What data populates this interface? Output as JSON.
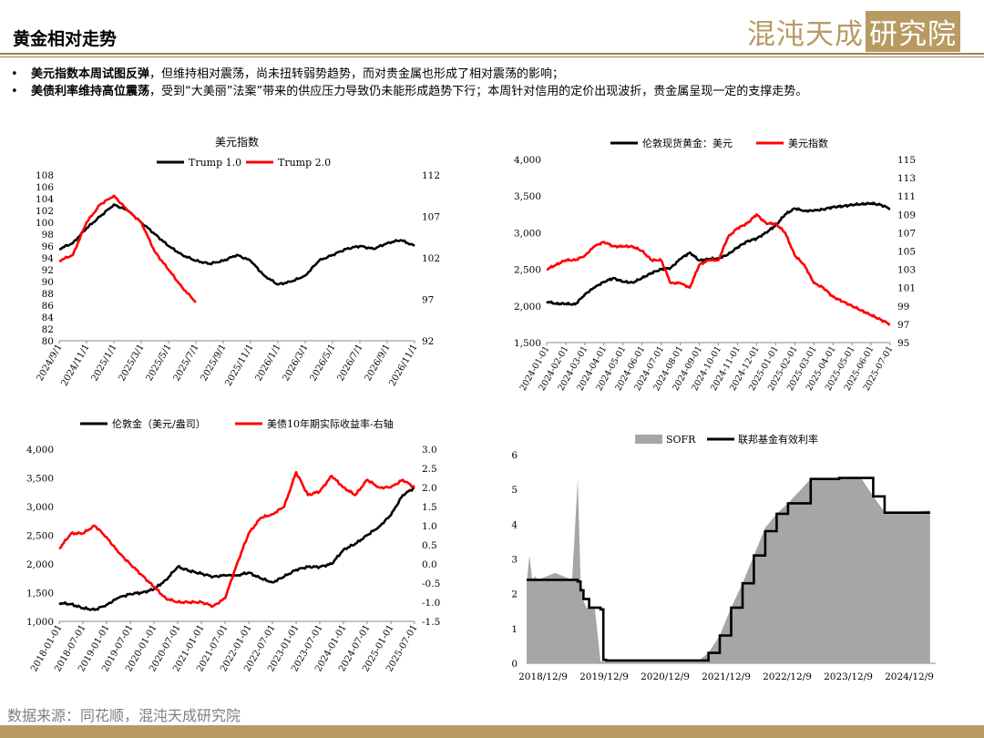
{
  "header": {
    "title": "黄金相对走势",
    "brand_part1": "混沌天成",
    "brand_part2": "研究院",
    "brand_color": "#b89a63"
  },
  "bullets": [
    {
      "bold": "美元指数本周试图反弹",
      "rest": "，但维持相对震荡，尚未扭转弱势趋势，而对贵金属也形成了相对震荡的影响；"
    },
    {
      "bold": "美债利率维持高位震荡",
      "rest": "，受到“大美丽”法案”带来的供应压力导致仍未能形成趋势下行；本周针对信用的定价出现波折，贵金属呈现一定的支撑走势。"
    }
  ],
  "footer": {
    "source": "数据来源：同花顺，混沌天成研究院"
  },
  "chart_data": [
    {
      "id": "usd_index_trump",
      "type": "line",
      "title": "美元指数",
      "x_ticks": [
        "2024/9/1",
        "2024/11/1",
        "2025/1/1",
        "2025/3/1",
        "2025/5/1",
        "2025/7/1",
        "2025/9/1",
        "2025/11/1",
        "2026/1/1",
        "2026/3/1",
        "2026/5/1",
        "2026/7/1",
        "2026/9/1",
        "2026/11/1"
      ],
      "y_left": {
        "min": 80,
        "max": 108,
        "step": 2,
        "ticks": [
          "108",
          "106",
          "104",
          "102",
          "100",
          "98",
          "96",
          "94",
          "92",
          "90",
          "88",
          "86",
          "84",
          "82",
          "80"
        ]
      },
      "y_right": {
        "min": 92,
        "max": 112,
        "ticks": [
          "112",
          "107",
          "102",
          "97",
          "92"
        ]
      },
      "series": [
        {
          "name": "Trump 1.0",
          "color": "#000000",
          "axis": "left",
          "x": [
            0,
            0.5,
            1,
            1.5,
            2,
            2.5,
            3,
            3.5,
            4,
            4.5,
            5,
            5.5,
            6,
            6.5,
            7,
            7.5,
            8,
            8.5,
            9,
            9.5,
            10,
            10.5,
            11,
            11.5,
            12,
            12.5,
            13
          ],
          "values": [
            95.5,
            96.5,
            99,
            101,
            103,
            102,
            100,
            98,
            96,
            94.5,
            93.5,
            93,
            93.5,
            94.5,
            93.5,
            91,
            89.5,
            90,
            91,
            93.5,
            94.5,
            95.5,
            96,
            95.5,
            96.5,
            97,
            96
          ]
        },
        {
          "name": "Trump 2.0",
          "color": "#ff0000",
          "axis": "left",
          "x": [
            0,
            0.5,
            1,
            1.5,
            2,
            2.5,
            3,
            3.5,
            4,
            4.5,
            5
          ],
          "values": [
            93.5,
            94.5,
            100,
            103,
            104.5,
            102,
            100,
            95,
            92,
            89,
            86.5
          ]
        }
      ]
    },
    {
      "id": "gold_vs_usd",
      "type": "line",
      "title": "",
      "x_ticks": [
        "2024-01-01",
        "2024-02-01",
        "2024-03-01",
        "2024-04-01",
        "2024-05-01",
        "2024-06-01",
        "2024-07-01",
        "2024-08-01",
        "2024-09-01",
        "2024-10-01",
        "2024-11-01",
        "2024-12-01",
        "2025-01-01",
        "2025-02-01",
        "2025-03-01",
        "2025-04-01",
        "2025-05-01",
        "2025-06-01",
        "2025-07-01"
      ],
      "y_left": {
        "min": 1500,
        "max": 4000,
        "ticks": [
          "4,000",
          "3,500",
          "3,000",
          "2,500",
          "2,000",
          "1,500"
        ]
      },
      "y_right": {
        "min": 95,
        "max": 115,
        "ticks": [
          "115",
          "113",
          "111",
          "109",
          "107",
          "105",
          "103",
          "101",
          "99",
          "97",
          "95"
        ]
      },
      "series": [
        {
          "name": "伦敦现货黄金：美元",
          "color": "#000000",
          "axis": "left",
          "x": [
            0,
            0.5,
            1,
            1.5,
            2,
            2.5,
            3,
            3.5,
            4,
            4.5,
            5,
            5.5,
            6,
            6.5,
            7,
            7.5,
            8,
            8.5,
            9,
            9.5,
            10,
            10.5,
            11,
            11.5,
            12,
            12.5,
            13,
            13.5,
            14,
            14.5,
            15,
            15.5,
            16,
            16.5,
            17,
            17.5,
            18
          ],
          "values": [
            2060,
            2030,
            2030,
            2020,
            2160,
            2250,
            2330,
            2380,
            2330,
            2320,
            2380,
            2450,
            2500,
            2520,
            2640,
            2730,
            2620,
            2640,
            2650,
            2700,
            2800,
            2880,
            2920,
            3000,
            3100,
            3250,
            3330,
            3300,
            3300,
            3320,
            3350,
            3360,
            3380,
            3390,
            3400,
            3380,
            3330
          ]
        },
        {
          "name": "美元指数",
          "color": "#ff0000",
          "axis": "right",
          "x": [
            0,
            0.5,
            1,
            1.5,
            2,
            2.5,
            3,
            3.5,
            4,
            4.5,
            5,
            5.5,
            6,
            6.5,
            7,
            7.5,
            8,
            8.5,
            9,
            9.5,
            10,
            10.5,
            11,
            11.5,
            12,
            12.5,
            13,
            13.5,
            14,
            14.5,
            15,
            15.5,
            16,
            16.5,
            17,
            17.5,
            18
          ],
          "values": [
            103,
            103.5,
            104,
            104,
            104.5,
            105.5,
            106,
            105.5,
            105.5,
            105.5,
            105,
            104,
            104,
            101.5,
            101.5,
            101,
            103.5,
            104,
            104,
            106.5,
            107.5,
            108,
            109,
            108,
            108,
            107,
            104.5,
            103.5,
            101.5,
            101,
            100,
            99.5,
            99,
            98.5,
            98,
            97.5,
            97
          ]
        }
      ]
    },
    {
      "id": "gold_vs_tips",
      "type": "line",
      "title": "",
      "x_ticks": [
        "2018-01-01",
        "2018-07-01",
        "2019-01-01",
        "2019-07-01",
        "2020-01-01",
        "2020-07-01",
        "2021-01-01",
        "2021-07-01",
        "2022-01-01",
        "2022-07-01",
        "2023-01-01",
        "2023-07-01",
        "2024-01-01",
        "2024-07-01",
        "2025-01-01",
        "2025-07-01"
      ],
      "y_left": {
        "min": 1000,
        "max": 4000,
        "ticks": [
          "4,000",
          "3,500",
          "3,000",
          "2,500",
          "2,000",
          "1,500",
          "1,000"
        ]
      },
      "y_right": {
        "min": -1.5,
        "max": 3.0,
        "ticks": [
          "3.0",
          "2.5",
          "2.0",
          "1.5",
          "1.0",
          "0.5",
          "0.0",
          "-0.5",
          "-1.0",
          "-1.5"
        ]
      },
      "series": [
        {
          "name": "伦敦金（美元/盎司）",
          "color": "#000000",
          "axis": "left",
          "x": [
            0,
            0.5,
            1,
            1.5,
            2,
            2.5,
            3,
            3.5,
            4,
            4.5,
            5,
            5.5,
            6,
            6.5,
            7,
            7.5,
            8,
            8.5,
            9,
            9.5,
            10,
            10.5,
            11,
            11.5,
            12,
            12.5,
            13,
            13.5,
            14,
            14.5,
            15
          ],
          "values": [
            1320,
            1300,
            1230,
            1200,
            1290,
            1410,
            1480,
            1500,
            1560,
            1720,
            1950,
            1880,
            1830,
            1780,
            1800,
            1800,
            1850,
            1750,
            1680,
            1780,
            1900,
            1950,
            1950,
            2000,
            2250,
            2350,
            2500,
            2650,
            2850,
            3200,
            3330
          ]
        },
        {
          "name": "美债10年期实际收益率-右轴",
          "color": "#ff0000",
          "axis": "right",
          "x": [
            0,
            0.5,
            1,
            1.5,
            2,
            2.5,
            3,
            3.5,
            4,
            4.5,
            5,
            5.5,
            6,
            6.5,
            7,
            7.5,
            8,
            8.5,
            9,
            9.5,
            10,
            10.5,
            11,
            11.5,
            12,
            12.5,
            13,
            13.5,
            14,
            14.5,
            15
          ],
          "values": [
            0.4,
            0.8,
            0.8,
            1.0,
            0.7,
            0.3,
            0.0,
            -0.3,
            -0.6,
            -0.9,
            -1.0,
            -1.0,
            -1.0,
            -1.1,
            -0.9,
            0.0,
            0.8,
            1.2,
            1.3,
            1.5,
            2.4,
            1.8,
            1.9,
            2.3,
            2.0,
            1.8,
            2.2,
            2.0,
            2.0,
            2.2,
            2.0
          ]
        }
      ]
    },
    {
      "id": "sofr_vs_fedfunds",
      "type": "area",
      "title": "",
      "x_ticks": [
        "2018/12/9",
        "2019/12/9",
        "2020/12/9",
        "2021/12/9",
        "2022/12/9",
        "2023/12/9",
        "2024/12/9"
      ],
      "y_left": {
        "min": 0,
        "max": 6,
        "ticks": [
          "6",
          "5",
          "4",
          "3",
          "2",
          "1",
          "0"
        ]
      },
      "series": [
        {
          "name": "SOFR",
          "color": "#a6a6a6",
          "type": "area",
          "x": [
            0,
            0.05,
            0.1,
            0.15,
            0.2,
            0.5,
            0.8,
            0.9,
            0.95,
            1.0,
            1.05,
            1.1,
            1.2,
            1.3,
            1.35,
            1.4,
            2.0,
            3.0,
            3.2,
            3.4,
            3.6,
            3.8,
            4.0,
            4.2,
            4.4,
            4.6,
            5.0,
            5.5,
            5.9,
            6.1,
            6.3,
            6.8,
            7.1
          ],
          "values": [
            2.3,
            3.1,
            2.4,
            2.5,
            2.4,
            2.6,
            2.4,
            5.3,
            2.4,
            1.8,
            1.6,
            1.6,
            1.6,
            0.05,
            0.05,
            0.05,
            0.05,
            0.05,
            0.3,
            0.8,
            1.6,
            2.3,
            3.1,
            3.9,
            4.3,
            4.6,
            5.3,
            5.3,
            5.3,
            4.8,
            4.35,
            4.35,
            4.4
          ]
        },
        {
          "name": "联邦基金有效利率",
          "color": "#000000",
          "type": "line",
          "x": [
            0,
            0.5,
            0.9,
            0.95,
            1.0,
            1.1,
            1.3,
            1.35,
            1.4,
            2.0,
            3.0,
            3.2,
            3.4,
            3.6,
            3.8,
            4.0,
            4.2,
            4.4,
            4.6,
            5.0,
            5.5,
            5.9,
            6.1,
            6.3,
            6.8,
            7.1
          ],
          "values": [
            2.4,
            2.4,
            2.35,
            2.1,
            1.85,
            1.6,
            1.55,
            0.1,
            0.08,
            0.08,
            0.08,
            0.3,
            0.8,
            1.6,
            2.3,
            3.1,
            3.8,
            4.3,
            4.6,
            5.3,
            5.33,
            5.33,
            4.8,
            4.33,
            4.33,
            4.33
          ]
        }
      ]
    }
  ]
}
